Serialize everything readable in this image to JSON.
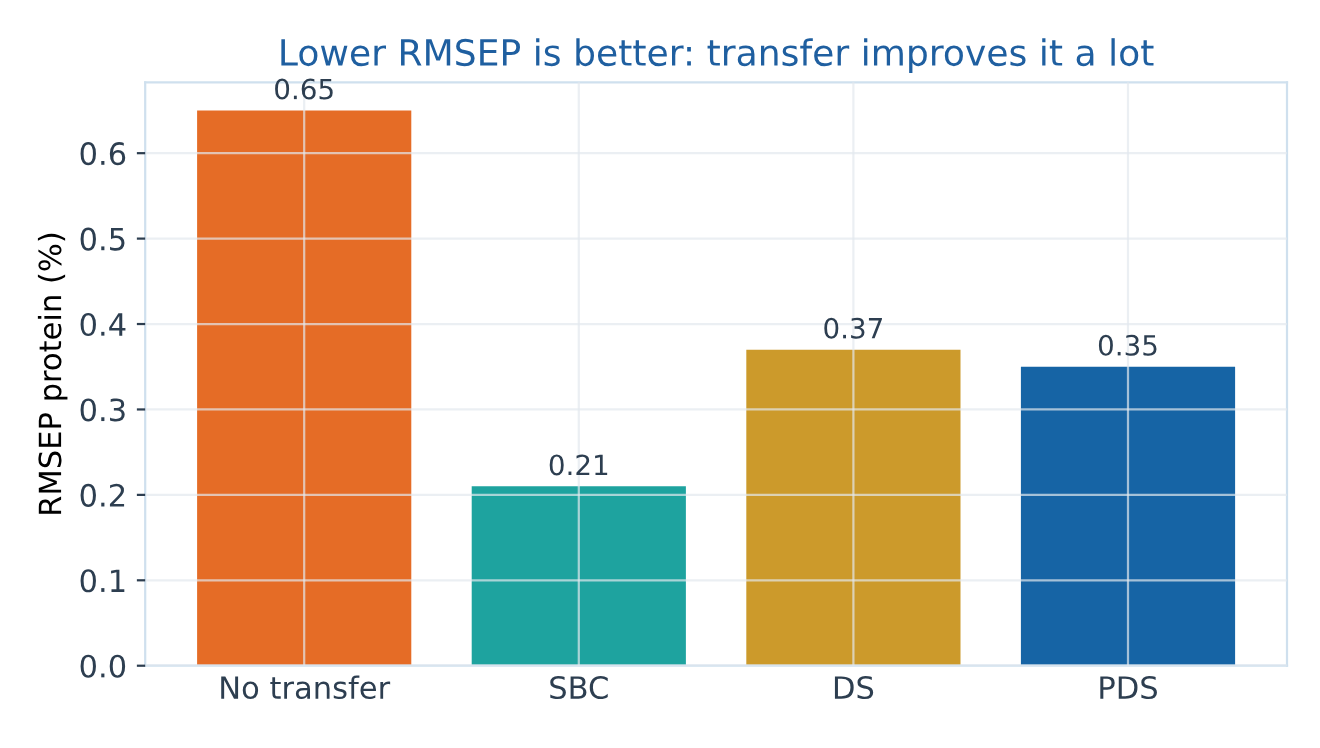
{
  "chart_data": {
    "type": "bar",
    "title": "Lower RMSEP is better: transfer improves it a lot",
    "ylabel": "RMSEP protein (%)",
    "categories": [
      "No transfer",
      "SBC",
      "DS",
      "PDS"
    ],
    "values": [
      0.65,
      0.21,
      0.37,
      0.35
    ],
    "colors": [
      "#e4641a",
      "#129e9a",
      "#c99520",
      "#0a5ca0"
    ],
    "ylim": [
      0,
      0.683
    ],
    "yticks": [
      {
        "value": 0,
        "label": "0.0"
      },
      0.1,
      0.2,
      0.3,
      0.4,
      0.5,
      0.6
    ],
    "grid": true,
    "data_labels": true
  }
}
